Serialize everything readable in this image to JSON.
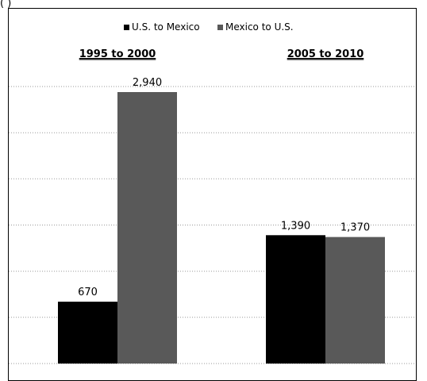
{
  "header_fragment": "(        )",
  "chart_data": {
    "type": "bar",
    "categories": [
      "1995 to 2000",
      "2005 to 2010"
    ],
    "series": [
      {
        "name": "U.S. to Mexico",
        "values": [
          670,
          1390
        ],
        "color": "#000000"
      },
      {
        "name": "Mexico to U.S.",
        "values": [
          2940,
          1370
        ],
        "color": "#595959"
      }
    ],
    "value_labels": [
      [
        "670",
        "1,390"
      ],
      [
        "2,940",
        "1,370"
      ]
    ],
    "ylim": [
      0,
      3000
    ],
    "grid": true,
    "grid_style": "dotted",
    "legend": "top-center",
    "title": "",
    "xlabel": "",
    "ylabel": ""
  }
}
